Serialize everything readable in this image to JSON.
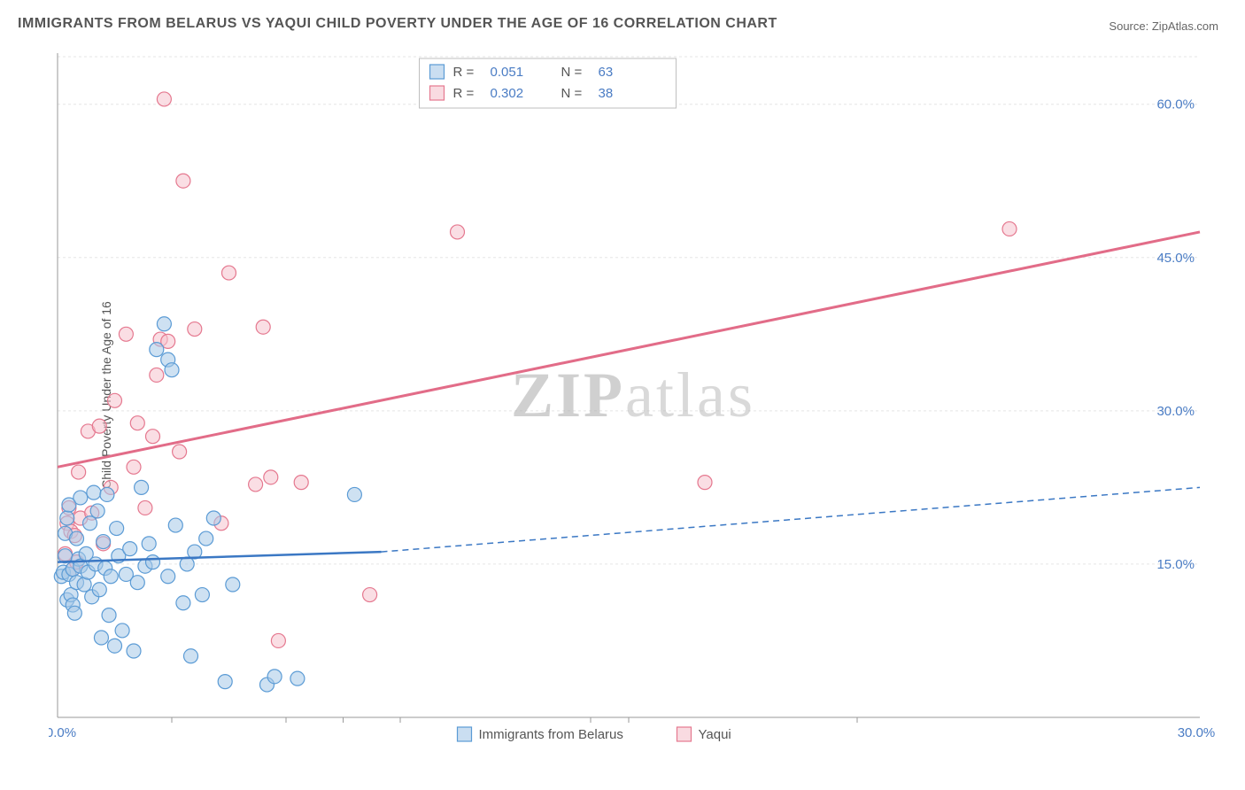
{
  "title": "IMMIGRANTS FROM BELARUS VS YAQUI CHILD POVERTY UNDER THE AGE OF 16 CORRELATION CHART",
  "source_label": "Source:",
  "source_name": "ZipAtlas.com",
  "ylabel": "Child Poverty Under the Age of 16",
  "watermark_a": "ZIP",
  "watermark_b": "atlas",
  "chart": {
    "type": "scatter",
    "xlim": [
      0,
      30
    ],
    "ylim": [
      0,
      65
    ],
    "x_ticks": [
      0,
      30
    ],
    "x_tick_labels": [
      "0.0%",
      "30.0%"
    ],
    "x_minor_ticks": [
      3,
      6,
      9,
      15,
      21
    ],
    "y_ticks": [
      15,
      30,
      45,
      60
    ],
    "y_tick_labels": [
      "15.0%",
      "30.0%",
      "45.0%",
      "60.0%"
    ],
    "grid_color": "#e5e5e5",
    "axis_color": "#9a9a9a",
    "background_color": "#ffffff",
    "point_radius": 8,
    "series": [
      {
        "name": "Immigrants from Belarus",
        "color_fill": "#a6c8e8",
        "color_stroke": "#5b9bd5",
        "r_value": "0.051",
        "n_value": "63",
        "trend": {
          "x0": 0,
          "y0": 15.2,
          "x1": 8.5,
          "y1": 16.2,
          "x2": 30,
          "y2": 22.5,
          "solid_until_x": 8.5,
          "color": "#3b78c4"
        },
        "points": [
          [
            0.1,
            13.8
          ],
          [
            0.15,
            14.2
          ],
          [
            0.2,
            18.0
          ],
          [
            0.2,
            15.8
          ],
          [
            0.25,
            19.5
          ],
          [
            0.25,
            11.5
          ],
          [
            0.3,
            20.8
          ],
          [
            0.3,
            14.0
          ],
          [
            0.35,
            12.0
          ],
          [
            0.4,
            14.5
          ],
          [
            0.4,
            11.0
          ],
          [
            0.45,
            10.2
          ],
          [
            0.5,
            17.5
          ],
          [
            0.5,
            13.2
          ],
          [
            0.55,
            15.5
          ],
          [
            0.6,
            14.8
          ],
          [
            0.6,
            21.5
          ],
          [
            0.7,
            13.0
          ],
          [
            0.75,
            16.0
          ],
          [
            0.8,
            14.2
          ],
          [
            0.85,
            19.0
          ],
          [
            0.9,
            11.8
          ],
          [
            0.95,
            22.0
          ],
          [
            1.0,
            15.0
          ],
          [
            1.05,
            20.2
          ],
          [
            1.1,
            12.5
          ],
          [
            1.15,
            7.8
          ],
          [
            1.2,
            17.2
          ],
          [
            1.25,
            14.6
          ],
          [
            1.3,
            21.8
          ],
          [
            1.35,
            10.0
          ],
          [
            1.4,
            13.8
          ],
          [
            1.5,
            7.0
          ],
          [
            1.55,
            18.5
          ],
          [
            1.6,
            15.8
          ],
          [
            1.7,
            8.5
          ],
          [
            1.8,
            14.0
          ],
          [
            1.9,
            16.5
          ],
          [
            2.0,
            6.5
          ],
          [
            2.1,
            13.2
          ],
          [
            2.2,
            22.5
          ],
          [
            2.3,
            14.8
          ],
          [
            2.4,
            17.0
          ],
          [
            2.5,
            15.2
          ],
          [
            2.6,
            36.0
          ],
          [
            2.8,
            38.5
          ],
          [
            2.9,
            13.8
          ],
          [
            2.9,
            35.0
          ],
          [
            3.0,
            34.0
          ],
          [
            3.1,
            18.8
          ],
          [
            3.3,
            11.2
          ],
          [
            3.4,
            15.0
          ],
          [
            3.5,
            6.0
          ],
          [
            3.6,
            16.2
          ],
          [
            3.8,
            12.0
          ],
          [
            3.9,
            17.5
          ],
          [
            4.1,
            19.5
          ],
          [
            4.4,
            3.5
          ],
          [
            4.6,
            13.0
          ],
          [
            5.5,
            3.2
          ],
          [
            5.7,
            4.0
          ],
          [
            6.3,
            3.8
          ],
          [
            7.8,
            21.8
          ]
        ]
      },
      {
        "name": "Yaqui",
        "color_fill": "#f5c3cd",
        "color_stroke": "#e5788f",
        "r_value": "0.302",
        "n_value": "38",
        "trend": {
          "x0": 0,
          "y0": 24.5,
          "x1": 30,
          "y1": 47.5,
          "color": "#e26c88"
        },
        "points": [
          [
            0.2,
            16.0
          ],
          [
            0.25,
            19.0
          ],
          [
            0.3,
            20.5
          ],
          [
            0.35,
            18.2
          ],
          [
            0.4,
            14.5
          ],
          [
            0.45,
            17.8
          ],
          [
            0.5,
            15.2
          ],
          [
            0.55,
            24.0
          ],
          [
            0.6,
            19.5
          ],
          [
            0.8,
            28.0
          ],
          [
            0.9,
            20.0
          ],
          [
            1.1,
            28.5
          ],
          [
            1.2,
            17.0
          ],
          [
            1.4,
            22.5
          ],
          [
            1.5,
            31.0
          ],
          [
            1.8,
            37.5
          ],
          [
            2.0,
            24.5
          ],
          [
            2.1,
            28.8
          ],
          [
            2.3,
            20.5
          ],
          [
            2.5,
            27.5
          ],
          [
            2.6,
            33.5
          ],
          [
            2.7,
            37.0
          ],
          [
            2.8,
            60.5
          ],
          [
            2.9,
            36.8
          ],
          [
            3.2,
            26.0
          ],
          [
            3.3,
            52.5
          ],
          [
            3.6,
            38.0
          ],
          [
            4.3,
            19.0
          ],
          [
            4.5,
            43.5
          ],
          [
            5.2,
            22.8
          ],
          [
            5.4,
            38.2
          ],
          [
            5.6,
            23.5
          ],
          [
            5.8,
            7.5
          ],
          [
            6.4,
            23.0
          ],
          [
            8.2,
            12.0
          ],
          [
            10.5,
            47.5
          ],
          [
            17.0,
            23.0
          ],
          [
            25.0,
            47.8
          ]
        ]
      }
    ]
  },
  "legend_top": {
    "r_label": "R  =",
    "n_label": "N  ="
  },
  "legend_bottom": {
    "series1": "Immigrants from Belarus",
    "series2": "Yaqui"
  }
}
